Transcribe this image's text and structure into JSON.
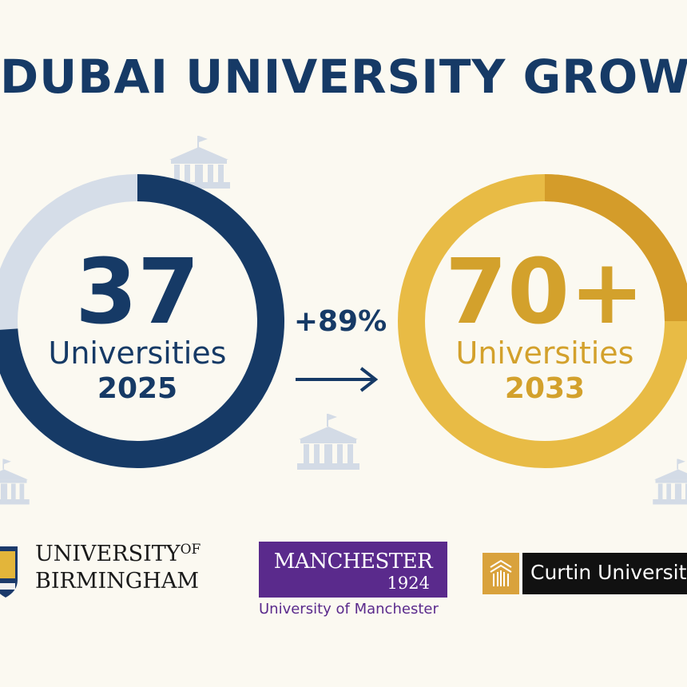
{
  "title": "DUBAI UNIVERSITY GROWTH",
  "left_ring": {
    "number": "37",
    "label": "Universities",
    "year": "2025",
    "fill_fraction": 0.74,
    "color": "#163a66",
    "track_color": "#d5dde8"
  },
  "right_ring": {
    "number": "70+",
    "label": "Universities",
    "year": "2033",
    "color": "#e8bb45",
    "accent_color": "#d49c2a"
  },
  "growth": {
    "text": "+89%"
  },
  "icons": {
    "building": "university-building-icon",
    "arrow": "arrow-right-icon"
  },
  "logos": {
    "birmingham": {
      "line1": "UNIVERSITY",
      "of": "OF",
      "line2": "BIRMINGHAM"
    },
    "manchester": {
      "name": "MANCHESTER",
      "year": "1924",
      "subtitle": "University of Manchester",
      "color": "#5a2a8c"
    },
    "curtin": {
      "name": "Curtin University",
      "color": "#d9a23c"
    }
  }
}
